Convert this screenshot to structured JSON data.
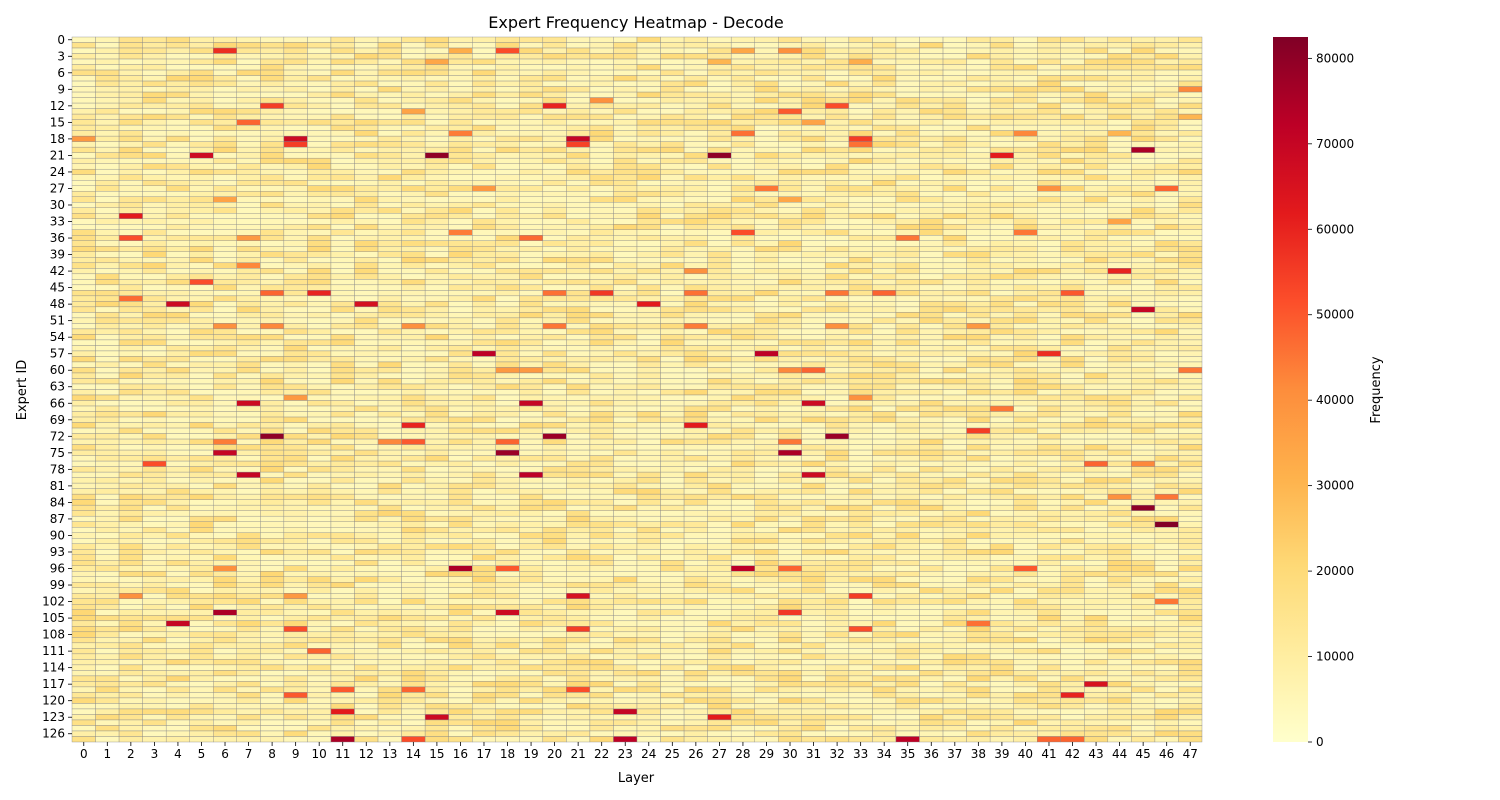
{
  "chart_data": {
    "type": "heatmap",
    "title": "Expert Frequency Heatmap - Decode",
    "xlabel": "Layer",
    "ylabel": "Expert ID",
    "n_layers": 48,
    "n_experts": 128,
    "x_tick_labels": [
      "0",
      "1",
      "2",
      "3",
      "4",
      "5",
      "6",
      "7",
      "8",
      "9",
      "10",
      "11",
      "12",
      "13",
      "14",
      "15",
      "16",
      "17",
      "18",
      "19",
      "20",
      "21",
      "22",
      "23",
      "24",
      "25",
      "26",
      "27",
      "28",
      "29",
      "30",
      "31",
      "32",
      "33",
      "34",
      "35",
      "36",
      "37",
      "38",
      "39",
      "40",
      "41",
      "42",
      "43",
      "44",
      "45",
      "46",
      "47"
    ],
    "y_tick_labels": [
      "0",
      "3",
      "6",
      "9",
      "12",
      "15",
      "18",
      "21",
      "24",
      "27",
      "30",
      "33",
      "36",
      "39",
      "42",
      "45",
      "48",
      "51",
      "54",
      "57",
      "60",
      "63",
      "66",
      "69",
      "72",
      "75",
      "78",
      "81",
      "84",
      "87",
      "90",
      "93",
      "96",
      "99",
      "102",
      "105",
      "108",
      "111",
      "114",
      "117",
      "120",
      "123",
      "126"
    ],
    "y_tick_values": [
      0,
      3,
      6,
      9,
      12,
      15,
      18,
      21,
      24,
      27,
      30,
      33,
      36,
      39,
      42,
      45,
      48,
      51,
      54,
      57,
      60,
      63,
      66,
      69,
      72,
      75,
      78,
      81,
      84,
      87,
      90,
      93,
      96,
      99,
      102,
      105,
      108,
      111,
      114,
      117,
      120,
      123,
      126
    ],
    "vmin": 0,
    "vmax": 82500,
    "base_value": 9000,
    "colormap": "YlOrRd",
    "grid": true,
    "colorbar": {
      "label": "Frequency",
      "ticks": [
        0,
        10000,
        20000,
        30000,
        40000,
        50000,
        60000,
        70000,
        80000
      ],
      "tick_labels": [
        "0",
        "10000",
        "20000",
        "30000",
        "40000",
        "50000",
        "60000",
        "70000",
        "80000"
      ],
      "placement": "right"
    },
    "highlights": [
      [
        6,
        2,
        58000
      ],
      [
        16,
        2,
        32000
      ],
      [
        18,
        2,
        52000
      ],
      [
        28,
        2,
        34000
      ],
      [
        30,
        2,
        40000
      ],
      [
        15,
        4,
        34000
      ],
      [
        27,
        4,
        30000
      ],
      [
        33,
        4,
        32000
      ],
      [
        47,
        9,
        42000
      ],
      [
        8,
        12,
        55000
      ],
      [
        20,
        12,
        60000
      ],
      [
        32,
        12,
        52000
      ],
      [
        22,
        11,
        40000
      ],
      [
        14,
        13,
        35000
      ],
      [
        30,
        13,
        50000
      ],
      [
        47,
        14,
        30000
      ],
      [
        7,
        15,
        48000
      ],
      [
        31,
        15,
        35000
      ],
      [
        16,
        17,
        44000
      ],
      [
        28,
        17,
        46000
      ],
      [
        40,
        17,
        42000
      ],
      [
        44,
        17,
        30000
      ],
      [
        9,
        18,
        68000
      ],
      [
        21,
        18,
        70000
      ],
      [
        33,
        18,
        55000
      ],
      [
        0,
        18,
        38000
      ],
      [
        9,
        19,
        55000
      ],
      [
        21,
        19,
        54000
      ],
      [
        33,
        19,
        46000
      ],
      [
        5,
        21,
        68000
      ],
      [
        15,
        21,
        80000
      ],
      [
        27,
        21,
        80000
      ],
      [
        39,
        21,
        62000
      ],
      [
        45,
        20,
        75000
      ],
      [
        46,
        27,
        48000
      ],
      [
        29,
        27,
        45000
      ],
      [
        17,
        27,
        38000
      ],
      [
        41,
        27,
        40000
      ],
      [
        6,
        29,
        35000
      ],
      [
        30,
        29,
        34000
      ],
      [
        2,
        32,
        62000
      ],
      [
        44,
        33,
        35000
      ],
      [
        2,
        36,
        52000
      ],
      [
        16,
        35,
        44000
      ],
      [
        19,
        36,
        47000
      ],
      [
        28,
        35,
        52000
      ],
      [
        40,
        35,
        45000
      ],
      [
        35,
        36,
        45000
      ],
      [
        7,
        36,
        38000
      ],
      [
        7,
        41,
        42000
      ],
      [
        44,
        42,
        60000
      ],
      [
        5,
        44,
        52000
      ],
      [
        26,
        42,
        40000
      ],
      [
        10,
        46,
        60000
      ],
      [
        8,
        46,
        48000
      ],
      [
        20,
        46,
        46000
      ],
      [
        22,
        46,
        56000
      ],
      [
        26,
        46,
        46000
      ],
      [
        32,
        46,
        45000
      ],
      [
        34,
        46,
        48000
      ],
      [
        42,
        46,
        50000
      ],
      [
        2,
        47,
        47000
      ],
      [
        4,
        48,
        68000
      ],
      [
        12,
        48,
        66000
      ],
      [
        24,
        48,
        62000
      ],
      [
        45,
        49,
        70000
      ],
      [
        6,
        52,
        40000
      ],
      [
        8,
        52,
        42000
      ],
      [
        14,
        52,
        40000
      ],
      [
        20,
        52,
        45000
      ],
      [
        26,
        52,
        44000
      ],
      [
        32,
        52,
        40000
      ],
      [
        38,
        52,
        38000
      ],
      [
        17,
        57,
        72000
      ],
      [
        29,
        57,
        72000
      ],
      [
        41,
        57,
        58000
      ],
      [
        30,
        60,
        42000
      ],
      [
        31,
        60,
        48000
      ],
      [
        47,
        60,
        45000
      ],
      [
        18,
        60,
        38000
      ],
      [
        19,
        60,
        38000
      ],
      [
        7,
        66,
        68000
      ],
      [
        19,
        66,
        70000
      ],
      [
        31,
        66,
        68000
      ],
      [
        9,
        65,
        38000
      ],
      [
        33,
        65,
        40000
      ],
      [
        39,
        67,
        45000
      ],
      [
        14,
        70,
        60000
      ],
      [
        26,
        70,
        62000
      ],
      [
        38,
        71,
        55000
      ],
      [
        8,
        72,
        80000
      ],
      [
        20,
        72,
        78000
      ],
      [
        32,
        72,
        78000
      ],
      [
        6,
        73,
        44000
      ],
      [
        13,
        73,
        42000
      ],
      [
        14,
        73,
        50000
      ],
      [
        18,
        73,
        48000
      ],
      [
        30,
        73,
        45000
      ],
      [
        6,
        75,
        70000
      ],
      [
        18,
        75,
        78000
      ],
      [
        30,
        75,
        75000
      ],
      [
        3,
        77,
        52000
      ],
      [
        43,
        77,
        48000
      ],
      [
        45,
        77,
        42000
      ],
      [
        7,
        79,
        70000
      ],
      [
        19,
        79,
        72000
      ],
      [
        31,
        79,
        68000
      ],
      [
        44,
        83,
        40000
      ],
      [
        46,
        83,
        45000
      ],
      [
        45,
        85,
        80000
      ],
      [
        46,
        88,
        82000
      ],
      [
        16,
        96,
        75000
      ],
      [
        28,
        96,
        72000
      ],
      [
        18,
        96,
        50000
      ],
      [
        30,
        96,
        48000
      ],
      [
        40,
        96,
        50000
      ],
      [
        6,
        96,
        40000
      ],
      [
        2,
        101,
        40000
      ],
      [
        21,
        101,
        65000
      ],
      [
        33,
        101,
        55000
      ],
      [
        9,
        101,
        38000
      ],
      [
        46,
        102,
        45000
      ],
      [
        6,
        104,
        75000
      ],
      [
        18,
        104,
        68000
      ],
      [
        30,
        104,
        56000
      ],
      [
        4,
        106,
        70000
      ],
      [
        9,
        107,
        52000
      ],
      [
        21,
        107,
        55000
      ],
      [
        33,
        107,
        52000
      ],
      [
        38,
        106,
        46000
      ],
      [
        10,
        111,
        48000
      ],
      [
        43,
        117,
        65000
      ],
      [
        42,
        119,
        60000
      ],
      [
        11,
        118,
        50000
      ],
      [
        14,
        118,
        48000
      ],
      [
        21,
        118,
        52000
      ],
      [
        9,
        119,
        50000
      ],
      [
        11,
        122,
        62000
      ],
      [
        15,
        123,
        68000
      ],
      [
        23,
        122,
        70000
      ],
      [
        27,
        123,
        62000
      ],
      [
        11,
        127,
        75000
      ],
      [
        23,
        127,
        72000
      ],
      [
        35,
        127,
        72000
      ],
      [
        14,
        127,
        52000
      ],
      [
        41,
        127,
        48000
      ],
      [
        42,
        127,
        48000
      ]
    ]
  }
}
